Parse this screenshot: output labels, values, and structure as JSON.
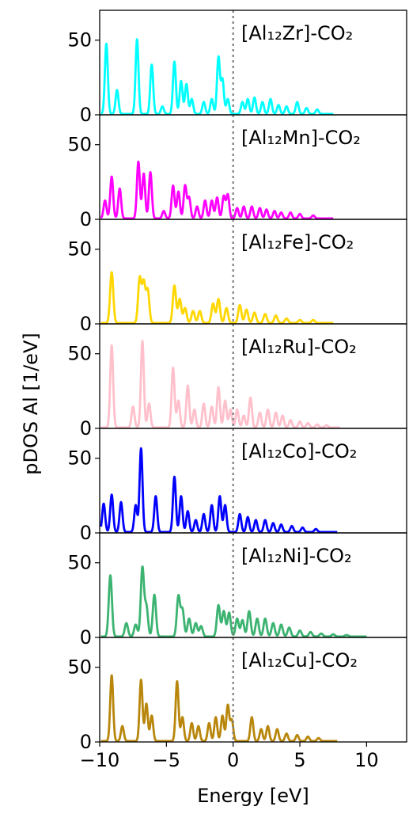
{
  "figure": {
    "ylabel": "pDOS Al [1/eV]",
    "xlabel": "Energy [eV]",
    "x_ticks": [
      -10,
      -5,
      0,
      5,
      10
    ],
    "x_tick_labels": [
      "−10",
      "−5",
      "0",
      "5",
      "10"
    ],
    "y_ticks": [
      0,
      50
    ],
    "y_tick_labels": [
      "0",
      "50"
    ],
    "xlim": [
      -10,
      13
    ],
    "fermi_line_x": 0
  },
  "chart_data": [
    {
      "type": "line",
      "title": "[Al₁₂Zr]-CO₂",
      "color": "#00ffff",
      "ylim": [
        0,
        70
      ],
      "peaks": [
        [
          -9.5,
          47
        ],
        [
          -8.7,
          16
        ],
        [
          -7.2,
          50
        ],
        [
          -6.1,
          33
        ],
        [
          -5.3,
          5
        ],
        [
          -4.4,
          35
        ],
        [
          -3.9,
          22
        ],
        [
          -3.5,
          20
        ],
        [
          -3.1,
          10
        ],
        [
          -2.2,
          8
        ],
        [
          -1.6,
          10
        ],
        [
          -1.1,
          38
        ],
        [
          -0.8,
          23
        ],
        [
          -0.4,
          10
        ],
        [
          0.7,
          8
        ],
        [
          1.1,
          10
        ],
        [
          1.6,
          11
        ],
        [
          2.2,
          8
        ],
        [
          2.8,
          10
        ],
        [
          3.4,
          6
        ],
        [
          4.0,
          5
        ],
        [
          4.8,
          8
        ],
        [
          5.5,
          4
        ],
        [
          6.3,
          3
        ]
      ],
      "emin": -9.9,
      "emax": 7.5,
      "width": 0.11,
      "baseline": 0.6
    },
    {
      "type": "line",
      "title": "[Al₁₂Mn]-CO₂",
      "color": "#ff00ff",
      "ylim": [
        0,
        70
      ],
      "peaks": [
        [
          -9.6,
          12
        ],
        [
          -9.1,
          28
        ],
        [
          -8.5,
          20
        ],
        [
          -7.1,
          38
        ],
        [
          -6.7,
          30
        ],
        [
          -6.2,
          31
        ],
        [
          -5.2,
          5
        ],
        [
          -4.5,
          22
        ],
        [
          -4.1,
          18
        ],
        [
          -3.6,
          22
        ],
        [
          -3.3,
          14
        ],
        [
          -2.7,
          8
        ],
        [
          -2.1,
          12
        ],
        [
          -1.6,
          12
        ],
        [
          -1.2,
          14
        ],
        [
          -0.7,
          15
        ],
        [
          -0.4,
          16
        ],
        [
          0.3,
          7
        ],
        [
          0.8,
          8
        ],
        [
          1.4,
          8
        ],
        [
          2.0,
          7
        ],
        [
          2.5,
          6
        ],
        [
          3.1,
          5
        ],
        [
          3.6,
          4
        ],
        [
          4.3,
          4
        ],
        [
          5.0,
          3
        ],
        [
          6.0,
          2
        ]
      ],
      "emin": -9.9,
      "emax": 7.5,
      "width": 0.11,
      "baseline": 0.6
    },
    {
      "type": "line",
      "title": "[Al₁₂Fe]-CO₂",
      "color": "#ffd700",
      "ylim": [
        0,
        70
      ],
      "peaks": [
        [
          -9.1,
          34
        ],
        [
          -7.0,
          30
        ],
        [
          -6.7,
          27
        ],
        [
          -6.4,
          22
        ],
        [
          -4.4,
          25
        ],
        [
          -4.0,
          16
        ],
        [
          -3.6,
          10
        ],
        [
          -3.0,
          8
        ],
        [
          -2.5,
          8
        ],
        [
          -1.5,
          13
        ],
        [
          -1.1,
          16
        ],
        [
          -0.5,
          10
        ],
        [
          0.5,
          12
        ],
        [
          1.0,
          9
        ],
        [
          1.6,
          7
        ],
        [
          2.4,
          6
        ],
        [
          3.2,
          5
        ],
        [
          4.0,
          3
        ],
        [
          5.0,
          2
        ],
        [
          6.0,
          2
        ]
      ],
      "emin": -9.9,
      "emax": 7.5,
      "width": 0.12,
      "baseline": 0.6
    },
    {
      "type": "line",
      "title": "[Al₁₂Ru]-CO₂",
      "color": "#ffc0cb",
      "ylim": [
        0,
        70
      ],
      "peaks": [
        [
          -9.1,
          55
        ],
        [
          -7.5,
          14
        ],
        [
          -6.8,
          58
        ],
        [
          -6.3,
          16
        ],
        [
          -4.5,
          40
        ],
        [
          -4.1,
          18
        ],
        [
          -3.4,
          28
        ],
        [
          -2.9,
          12
        ],
        [
          -2.2,
          16
        ],
        [
          -1.6,
          14
        ],
        [
          -1.1,
          27
        ],
        [
          -0.6,
          18
        ],
        [
          -0.2,
          12
        ],
        [
          0.3,
          12
        ],
        [
          0.8,
          8
        ],
        [
          1.3,
          20
        ],
        [
          2.0,
          10
        ],
        [
          2.6,
          12
        ],
        [
          3.2,
          10
        ],
        [
          3.7,
          8
        ],
        [
          4.3,
          5
        ],
        [
          5.0,
          4
        ],
        [
          5.6,
          3
        ],
        [
          6.3,
          2
        ],
        [
          7.0,
          1.5
        ]
      ],
      "emin": -9.9,
      "emax": 8.0,
      "width": 0.11,
      "baseline": 0.6
    },
    {
      "type": "line",
      "title": "[Al₁₂Co]-CO₂",
      "color": "#0000ff",
      "ylim": [
        0,
        70
      ],
      "peaks": [
        [
          -9.7,
          19
        ],
        [
          -9.1,
          25
        ],
        [
          -8.4,
          20
        ],
        [
          -7.3,
          18
        ],
        [
          -6.9,
          56
        ],
        [
          -5.8,
          24
        ],
        [
          -4.4,
          37
        ],
        [
          -3.9,
          24
        ],
        [
          -3.4,
          14
        ],
        [
          -2.8,
          8
        ],
        [
          -2.2,
          12
        ],
        [
          -1.6,
          18
        ],
        [
          -1.0,
          24
        ],
        [
          -0.6,
          18
        ],
        [
          0.5,
          12
        ],
        [
          1.1,
          10
        ],
        [
          1.7,
          8
        ],
        [
          2.4,
          8
        ],
        [
          3.0,
          6
        ],
        [
          3.6,
          5
        ],
        [
          4.4,
          4
        ],
        [
          5.2,
          3
        ],
        [
          6.2,
          2
        ]
      ],
      "emin": -9.9,
      "emax": 7.8,
      "width": 0.11,
      "baseline": 0.6
    },
    {
      "type": "line",
      "title": "[Al₁₂Ni]-CO₂",
      "color": "#3cb371",
      "ylim": [
        0,
        70
      ],
      "peaks": [
        [
          -9.2,
          41
        ],
        [
          -8.0,
          9
        ],
        [
          -7.3,
          8
        ],
        [
          -6.8,
          46
        ],
        [
          -6.5,
          20
        ],
        [
          -5.9,
          28
        ],
        [
          -4.1,
          27
        ],
        [
          -3.8,
          18
        ],
        [
          -3.3,
          12
        ],
        [
          -2.8,
          9
        ],
        [
          -2.4,
          7
        ],
        [
          -1.1,
          21
        ],
        [
          -0.7,
          17
        ],
        [
          -0.3,
          16
        ],
        [
          0.3,
          12
        ],
        [
          0.7,
          11
        ],
        [
          1.2,
          17
        ],
        [
          1.8,
          12
        ],
        [
          2.4,
          12
        ],
        [
          3.0,
          9
        ],
        [
          3.6,
          8
        ],
        [
          4.2,
          6
        ],
        [
          5.0,
          4
        ],
        [
          5.8,
          3
        ],
        [
          6.6,
          2
        ],
        [
          7.5,
          1.5
        ],
        [
          8.5,
          1
        ]
      ],
      "emin": -9.9,
      "emax": 10.0,
      "width": 0.12,
      "baseline": 0.6
    },
    {
      "type": "line",
      "title": "[Al₁₂Cu]-CO₂",
      "color": "#b8860b",
      "ylim": [
        0,
        70
      ],
      "peaks": [
        [
          -9.1,
          44
        ],
        [
          -8.3,
          10
        ],
        [
          -6.9,
          41
        ],
        [
          -6.5,
          25
        ],
        [
          -6.1,
          17
        ],
        [
          -4.2,
          40
        ],
        [
          -3.8,
          16
        ],
        [
          -3.1,
          12
        ],
        [
          -2.6,
          10
        ],
        [
          -1.8,
          12
        ],
        [
          -1.3,
          16
        ],
        [
          -0.8,
          17
        ],
        [
          -0.4,
          24
        ],
        [
          -0.1,
          14
        ],
        [
          1.4,
          16
        ],
        [
          2.1,
          8
        ],
        [
          2.6,
          10
        ],
        [
          3.3,
          8
        ],
        [
          4.0,
          5
        ],
        [
          4.8,
          4
        ],
        [
          5.6,
          3
        ],
        [
          6.4,
          2
        ]
      ],
      "emin": -9.9,
      "emax": 7.8,
      "width": 0.11,
      "baseline": 0.6
    }
  ]
}
